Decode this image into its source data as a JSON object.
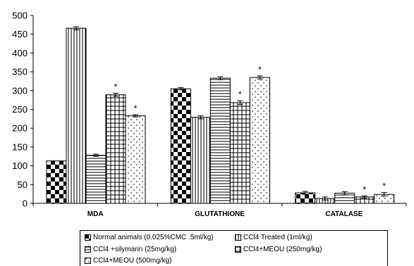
{
  "chart_data": {
    "type": "bar",
    "categories": [
      "MDA",
      "GLUTATHIONE",
      "CATALASE"
    ],
    "series": [
      {
        "name": "Normal animals (0.025%CMC .5ml/kg)",
        "values": [
          113,
          305,
          28
        ],
        "errors": [
          0,
          3,
          4
        ],
        "pattern": "checker",
        "significant": [
          false,
          false,
          false
        ]
      },
      {
        "name": "CCl4 Treated (1ml/kg)",
        "values": [
          466,
          229,
          13
        ],
        "errors": [
          4,
          4,
          4
        ],
        "pattern": "vlines",
        "significant": [
          false,
          false,
          false
        ]
      },
      {
        "name": "CCl4 +silymarin (25mg/kg)",
        "values": [
          128,
          333,
          27
        ],
        "errors": [
          3,
          4,
          4
        ],
        "pattern": "hlines",
        "significant": [
          false,
          false,
          false
        ]
      },
      {
        "name": "CCl4+MEOU (250mg/kg)",
        "values": [
          289,
          268,
          17
        ],
        "errors": [
          4,
          5,
          3
        ],
        "pattern": "grid",
        "significant": [
          true,
          true,
          true
        ]
      },
      {
        "name": "CCl4+MEOU (500mg/kg)",
        "values": [
          233,
          335,
          24
        ],
        "errors": [
          3,
          4,
          5
        ],
        "pattern": "dots",
        "significant": [
          true,
          true,
          true
        ]
      }
    ],
    "significance_marker": "*",
    "ylim": [
      0,
      500
    ],
    "yticks": [
      0,
      50,
      100,
      150,
      200,
      250,
      300,
      350,
      400,
      450,
      500
    ],
    "grid": false,
    "legend_position": "bottom",
    "title": "",
    "xlabel": "",
    "ylabel": ""
  }
}
